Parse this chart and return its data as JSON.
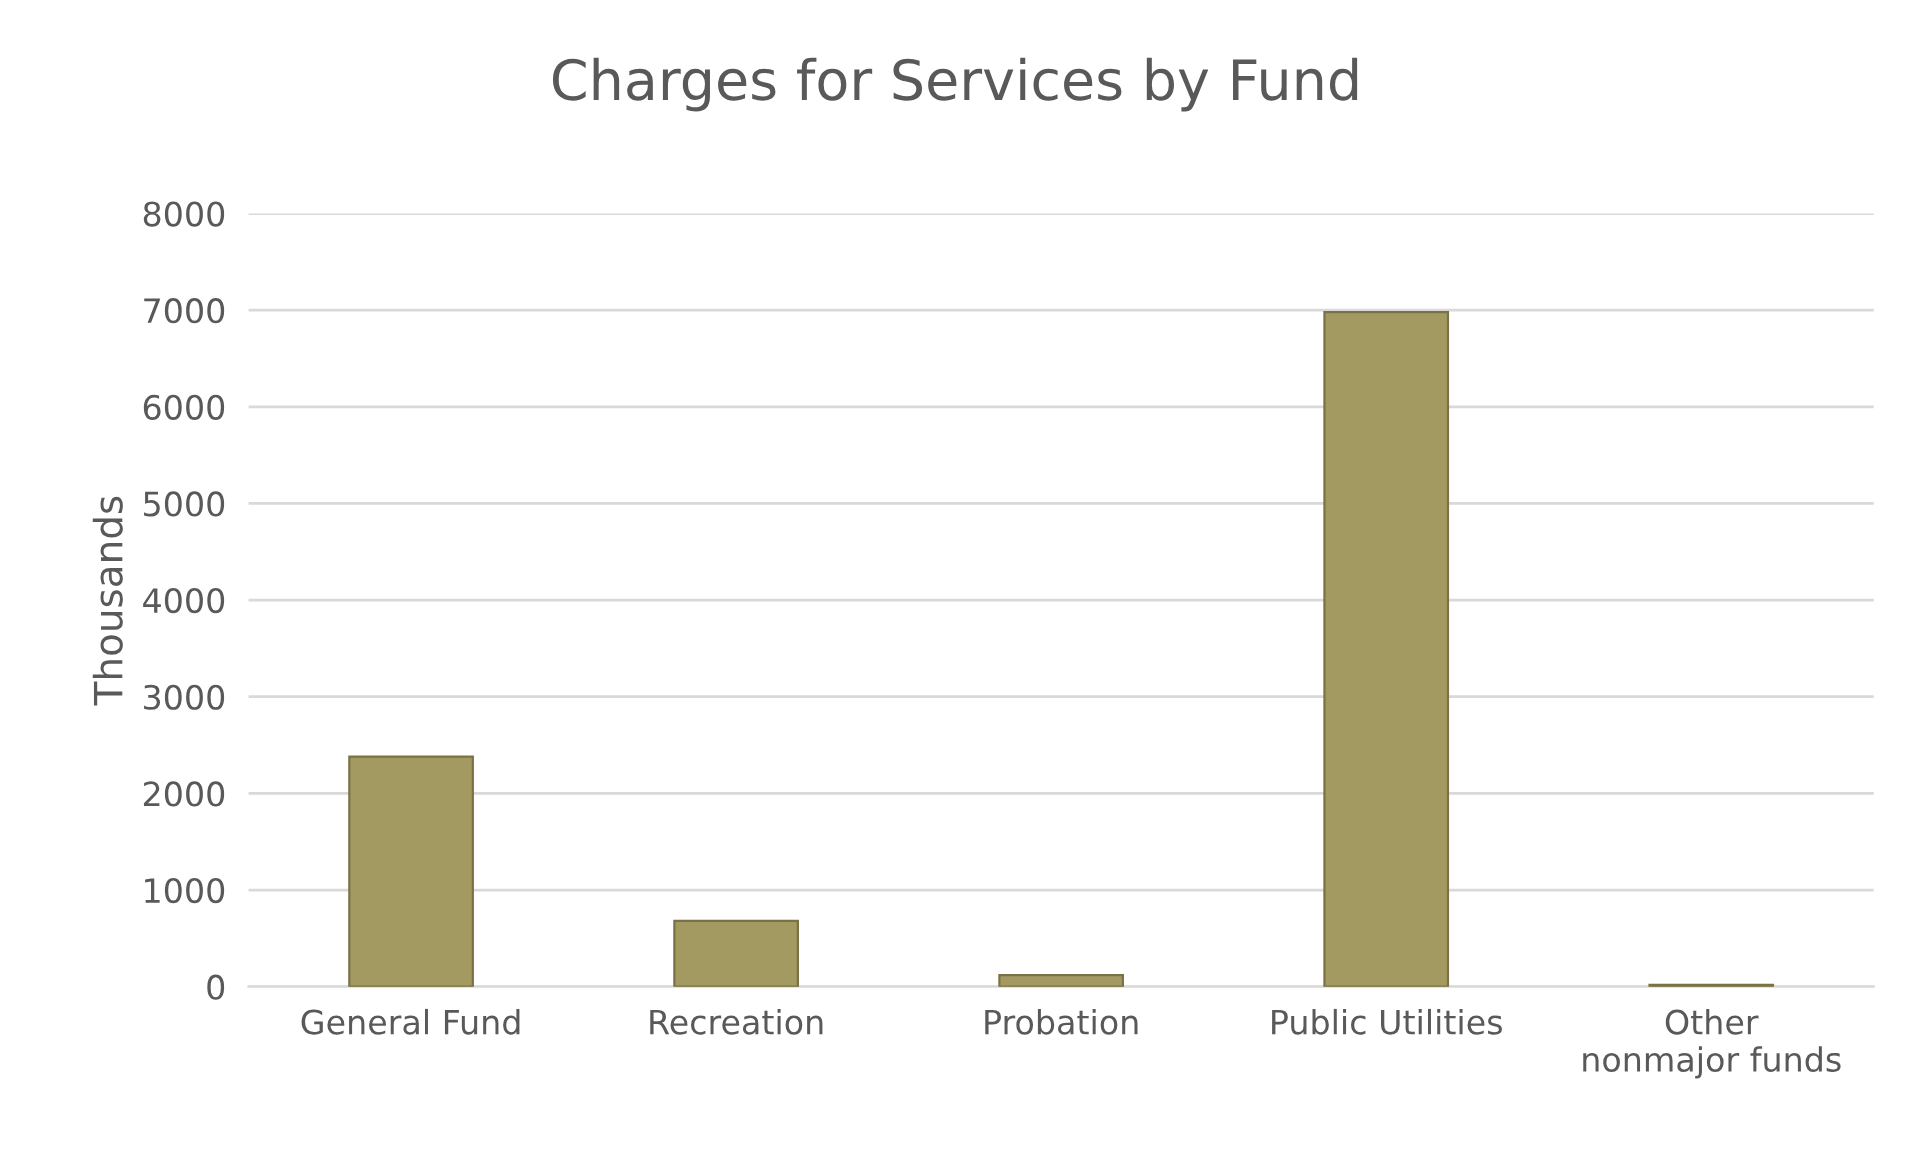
{
  "chart_data": {
    "type": "bar",
    "title": "Charges for Services by Fund",
    "ylabel": "Thousands",
    "categories": [
      "General Fund",
      "Recreation",
      "Probation",
      "Public Utilities",
      "Other\nnonmajor funds"
    ],
    "values": [
      2380,
      680,
      120,
      6980,
      20
    ],
    "color": "#a39a62",
    "ylim": [
      0,
      8000
    ],
    "yticks": [
      0,
      1000,
      2000,
      3000,
      4000,
      5000,
      6000,
      7000,
      8000
    ],
    "grid": "y"
  }
}
